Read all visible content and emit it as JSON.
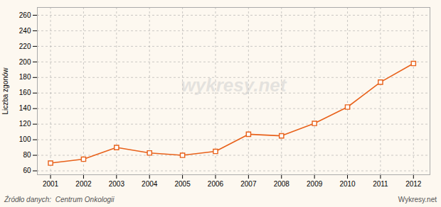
{
  "chart_data": {
    "type": "line",
    "x": [
      2001,
      2002,
      2003,
      2004,
      2005,
      2006,
      2007,
      2008,
      2009,
      2010,
      2011,
      2012
    ],
    "values": [
      70,
      75,
      90,
      83,
      80,
      85,
      107,
      105,
      121,
      142,
      174,
      198
    ],
    "color": "#e8611a",
    "marker": "square",
    "y_label": "Liczba zgonów",
    "xlim": [
      2000.6,
      2012.5
    ],
    "xticks": [
      2001,
      2002,
      2003,
      2004,
      2005,
      2006,
      2007,
      2008,
      2009,
      2010,
      2011,
      2012
    ],
    "ylim": [
      55,
      270
    ],
    "yticks": [
      60,
      80,
      100,
      120,
      140,
      160,
      180,
      200,
      220,
      240,
      260
    ],
    "grid": true,
    "annotations": [
      "wykresy.net",
      "Źródło danych:  Centrum Onkologii",
      "Wykresy.net"
    ]
  }
}
